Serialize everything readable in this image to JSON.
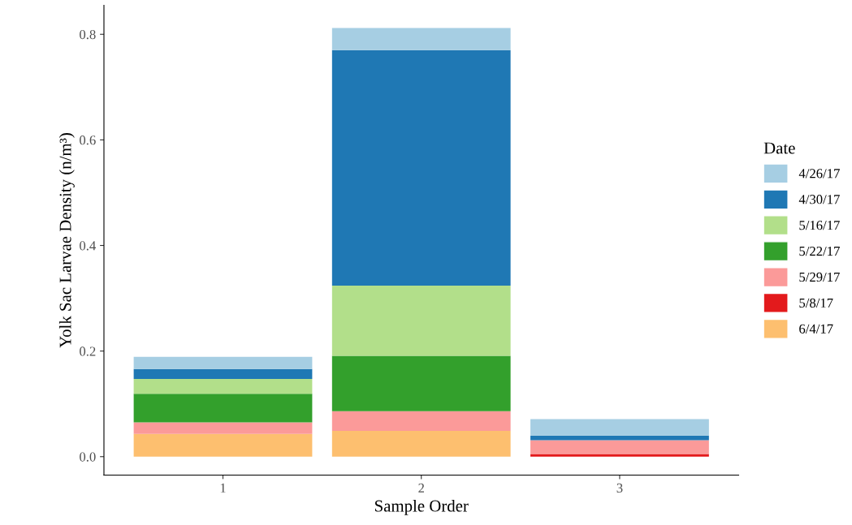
{
  "chart_data": {
    "type": "bar",
    "stacked": true,
    "xlabel": "Sample Order",
    "ylabel": "Yolk Sac Larvae Density (n/m³)",
    "legend_title": "Date",
    "legend": "right",
    "grid": false,
    "categories": [
      "1",
      "2",
      "3"
    ],
    "ylim": [
      -0.035,
      0.855
    ],
    "yticks": [
      {
        "value": 0,
        "label": "0.0"
      },
      0.2,
      0.4,
      0.6,
      0.8
    ],
    "series": [
      {
        "name": "6/4/17",
        "color": "#fdbf6f",
        "values": [
          0.043,
          0.049,
          0
        ]
      },
      {
        "name": "5/8/17",
        "color": "#e31a1c",
        "values": [
          0,
          0,
          0.005
        ]
      },
      {
        "name": "5/29/17",
        "color": "#fb9a99",
        "values": [
          0.022,
          0.037,
          0.026
        ]
      },
      {
        "name": "5/22/17",
        "color": "#33a02c",
        "values": [
          0.054,
          0.105,
          0
        ]
      },
      {
        "name": "5/16/17",
        "color": "#b2df8a",
        "values": [
          0.028,
          0.133,
          0
        ]
      },
      {
        "name": "4/30/17",
        "color": "#1f78b4",
        "values": [
          0.019,
          0.446,
          0.009
        ]
      },
      {
        "name": "4/26/17",
        "color": "#a6cee3",
        "values": [
          0.023,
          0.042,
          0.031
        ]
      }
    ]
  }
}
